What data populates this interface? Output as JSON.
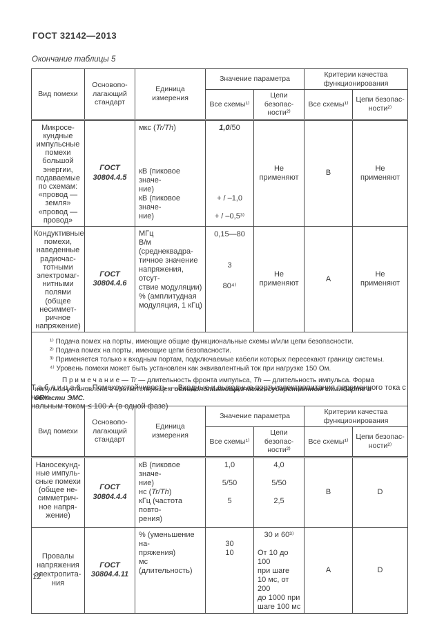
{
  "page": {
    "standard": "ГОСТ 32142—2013",
    "number": "12"
  },
  "thead": {
    "type": "Вид помехи",
    "standard": [
      "Основопо-",
      "лагающий",
      "стандарт"
    ],
    "unit": "Единица измерения",
    "value_group": "Значение  параметра",
    "criteria_group": [
      "Критерии качества",
      "функционирования"
    ],
    "all_schemes": "Все схемы¹⁾",
    "safety": [
      "Цепи безопас-",
      "ности²⁾"
    ]
  },
  "table5": {
    "caption": "Окончание таблицы 5",
    "rows": [
      {
        "type": [
          "Микросе-",
          "кундные",
          "импульсные",
          "помехи",
          "большой",
          "энергии,",
          "подаваемые",
          "по схемам:",
          "«провод —",
          "земля»",
          "«провод —",
          "провод»"
        ],
        "standard": [
          "ГОСТ",
          "30804.4.5"
        ],
        "unit_top_pre": "мкс (",
        "unit_top_it": "Tr/Th",
        "unit_top_post": ")",
        "unit_bottom": [
          "кВ (пиковое  значе-",
          "ние)",
          "кВ (пиковое  значе-",
          "ние)"
        ],
        "value_top_bold": "1,0",
        "value_top_rest": "/50",
        "value_bottom": [
          "",
          "+ / –1,0",
          "",
          "+ / –0,5³⁾"
        ],
        "safety_value": [
          "Не",
          "применяют"
        ],
        "criteria_all": "В",
        "criteria_safety": [
          "Не",
          "применяют"
        ]
      },
      {
        "type": [
          "Кондуктивные",
          "помехи,",
          "наведенные",
          "радиочас-",
          "тотными",
          "электромаг-",
          "нитными",
          "полями",
          "(общее",
          "несиммет-",
          "ричное",
          "напряжение)"
        ],
        "standard": [
          "ГОСТ",
          "30804.4.6"
        ],
        "unit": [
          "МГц",
          "В/м (среднеквадра-",
          "тичное  значение",
          "напряжения, отсут-",
          "ствие модуляции)",
          "% (амплитудная",
          "модуляция, 1 кГц)"
        ],
        "value_all": [
          "0,15—80",
          "",
          "",
          "3",
          "",
          "80⁴⁾"
        ],
        "safety_value": [
          "Не",
          "применяют"
        ],
        "criteria_all": "А",
        "criteria_safety": [
          "Не",
          "применяют"
        ]
      }
    ],
    "footnotes": [
      "¹⁾ Подача помех на порты,  имеющие общие функциональные схемы и/или  цепи  безопасности.",
      "²⁾ Подача помех на порты,  имеющие цепи безопасности.",
      "³⁾ Применяется только к входным портам, подключаемые кабели которых пересекают границу системы.",
      "⁴⁾ Уровень помехи  может  быть  установлен  как  эквивалентный  ток  при  нагрузке 150 Ом."
    ],
    "note": {
      "label": "П р и м е ч а н и е — ",
      "i1": "Tr",
      "t1": " — длительность фронта  импульса, ",
      "i2": "Th",
      "t2": " — длительность импульса. Форма импульса установлена в соответствующем ",
      "bold": "основополагающем  межгосударственном стандарте в области  ЭМС."
    }
  },
  "table6": {
    "caption": [
      "Т а б л и ц а  6 — Помехоустойчивость — Входные и выходные порты электропитания переменного тока с номи-",
      "нальным током  ≤ 100 А (в одной фазе)"
    ],
    "rows": [
      {
        "type": [
          "Наносекунд-",
          "ные импуль-",
          "сные помехи",
          "(общее не-",
          "симметрич-",
          "ное напря-",
          "жение)"
        ],
        "standard": [
          "ГОСТ",
          "30804.4.4"
        ],
        "unit_l1": [
          "кВ (пиковое значе-",
          "ние)"
        ],
        "unit_l2_pre": "нс (",
        "unit_l2_it": "Tr/Th",
        "unit_l2_post": ")",
        "unit_l3": [
          "кГц (частота повто-",
          "рения)"
        ],
        "value_all": [
          "1,0",
          "",
          "5/50",
          "",
          "5"
        ],
        "value_safety": [
          "4,0",
          "",
          "5/50",
          "",
          "2,5"
        ],
        "criteria_all": "В",
        "criteria_safety": "D"
      },
      {
        "type": [
          "Провалы",
          "напряжения",
          "электропита-",
          "ния"
        ],
        "standard": [
          "ГОСТ",
          "30804.4.11"
        ],
        "unit": [
          "% (уменьшение на-",
          "пряжения)",
          "мс (длительность)"
        ],
        "value_all": [
          "",
          "30",
          "10"
        ],
        "value_safety_head": "30 и 60³⁾",
        "value_safety_block": [
          "От 10 до 100",
          "при шаге",
          "10 мс, от 200",
          "до 1000 при",
          "шаге 100 мс"
        ],
        "criteria_all": "А",
        "criteria_safety": "D"
      }
    ]
  }
}
